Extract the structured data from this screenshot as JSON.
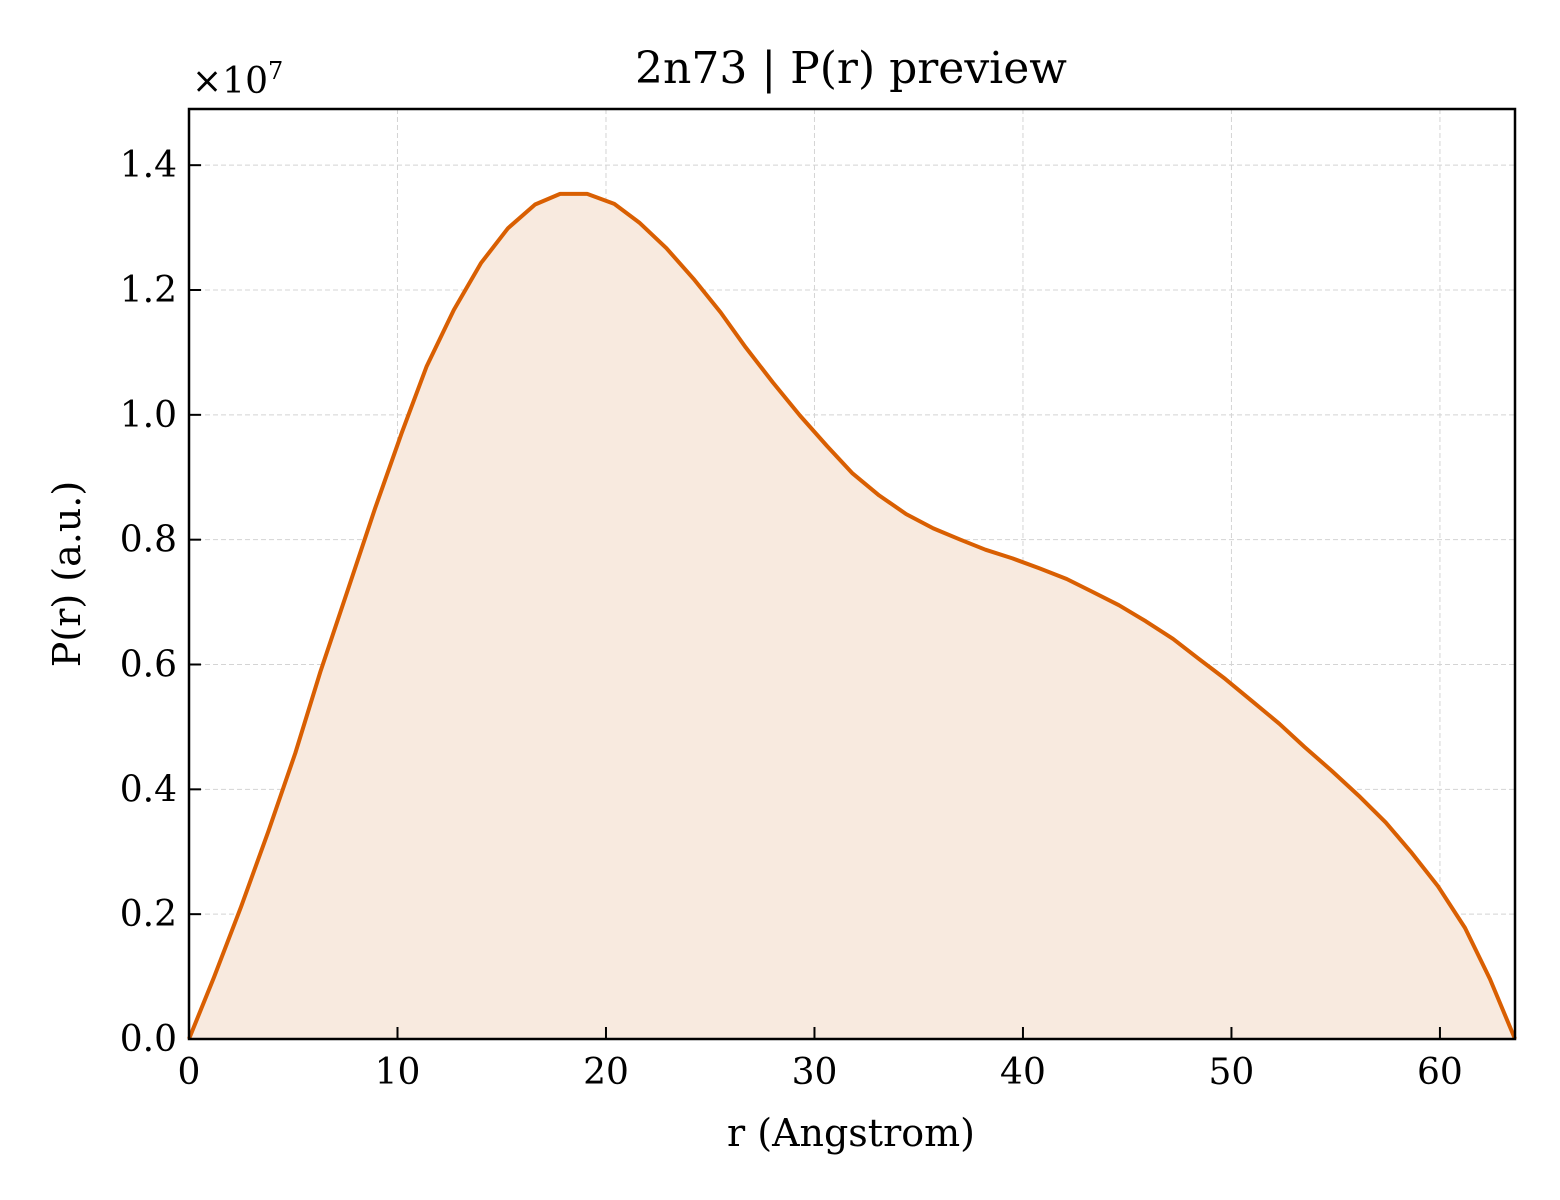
{
  "chart_data": {
    "type": "area",
    "title": "2n73 | P(r) preview",
    "xlabel": "r (Angstrom)",
    "ylabel": "P(r) (a.u.)",
    "y_multiplier_label": "×10",
    "y_multiplier_exponent": "7",
    "xlim": [
      0,
      63.6
    ],
    "ylim": [
      0,
      1.49
    ],
    "y_scale_factor": 10000000,
    "xticks": [
      0,
      10,
      20,
      30,
      40,
      50,
      60
    ],
    "xtick_labels": [
      "0",
      "10",
      "20",
      "30",
      "40",
      "50",
      "60"
    ],
    "yticks": [
      0.0,
      0.2,
      0.4,
      0.6,
      0.8,
      1.0,
      1.2,
      1.4
    ],
    "ytick_labels": [
      "0.0",
      "0.2",
      "0.4",
      "0.6",
      "0.8",
      "1.0",
      "1.2",
      "1.4"
    ],
    "grid": true,
    "line_color": "#d95f02",
    "fill_color": "#f8eadf",
    "series": [
      {
        "x": [
          0,
          1.2,
          2.5,
          3.8,
          5.1,
          6.3,
          7.6,
          8.9,
          10.2,
          11.4,
          12.7,
          14.0,
          15.3,
          16.6,
          17.8,
          19.1,
          20.4,
          21.6,
          22.9,
          24.2,
          25.5,
          26.7,
          28.0,
          29.3,
          30.6,
          31.8,
          33.1,
          34.4,
          35.7,
          37.0,
          38.2,
          39.5,
          40.8,
          42.1,
          43.3,
          44.6,
          45.9,
          47.2,
          48.4,
          49.7,
          51.0,
          52.3,
          53.5,
          54.8,
          56.1,
          57.4,
          58.6,
          59.9,
          61.2,
          62.4,
          63.6
        ],
        "y": [
          0.0,
          0.099,
          0.212,
          0.332,
          0.458,
          0.588,
          0.718,
          0.848,
          0.971,
          1.078,
          1.168,
          1.243,
          1.299,
          1.337,
          1.354,
          1.354,
          1.338,
          1.308,
          1.267,
          1.218,
          1.164,
          1.108,
          1.052,
          0.999,
          0.95,
          0.907,
          0.871,
          0.841,
          0.818,
          0.8,
          0.784,
          0.77,
          0.754,
          0.737,
          0.717,
          0.695,
          0.669,
          0.641,
          0.61,
          0.577,
          0.541,
          0.505,
          0.468,
          0.43,
          0.39,
          0.347,
          0.3,
          0.245,
          0.178,
          0.096,
          0.0
        ]
      }
    ]
  }
}
